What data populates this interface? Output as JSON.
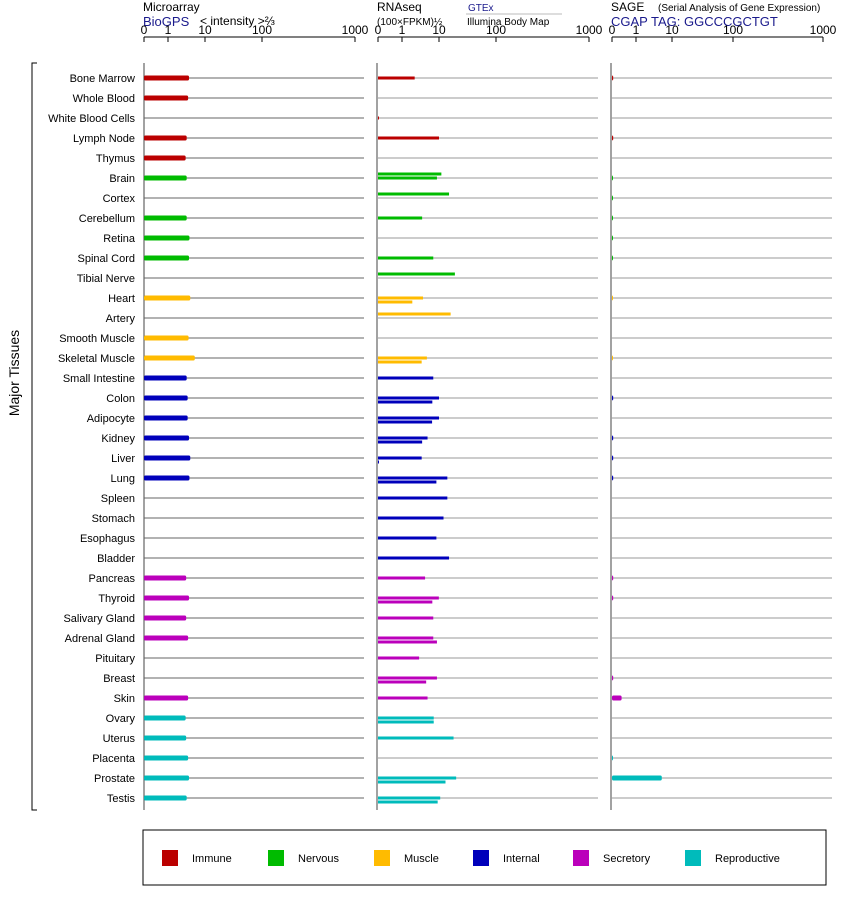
{
  "headers": {
    "microarray_title": "Microarray",
    "microarray_source": "BioGPS",
    "microarray_scale_label": "< intensity >⅔",
    "rnaseq_title": "RNAseq",
    "rnaseq_scale_label": "(100×FPKM)½",
    "rnaseq_source_1": "GTEx",
    "rnaseq_source_2": "Illumina Body Map",
    "sage_title": "SAGE",
    "sage_subtitle": "(Serial Analysis of Gene Expression)",
    "sage_source": "CGAP TAG: GGCCCGCTGT"
  },
  "y_group_label": "Major Tissues",
  "chart_data": {
    "type": "bar",
    "orientation": "horizontal",
    "x_scale": "nonlinear",
    "x_ticks": [
      "0",
      "1",
      "10",
      "100",
      "1000"
    ],
    "categories": [
      "Bone Marrow",
      "Whole Blood",
      "White Blood Cells",
      "Lymph Node",
      "Thymus",
      "Brain",
      "Cortex",
      "Cerebellum",
      "Retina",
      "Spinal Cord",
      "Tibial Nerve",
      "Heart",
      "Artery",
      "Smooth Muscle",
      "Skeletal Muscle",
      "Small Intestine",
      "Colon",
      "Adipocyte",
      "Kidney",
      "Liver",
      "Lung",
      "Spleen",
      "Stomach",
      "Esophagus",
      "Bladder",
      "Pancreas",
      "Thyroid",
      "Salivary Gland",
      "Adrenal Gland",
      "Pituitary",
      "Breast",
      "Skin",
      "Ovary",
      "Uterus",
      "Placenta",
      "Prostate",
      "Testis"
    ],
    "groups": [
      "Immune",
      "Immune",
      "Immune",
      "Immune",
      "Immune",
      "Nervous",
      "Nervous",
      "Nervous",
      "Nervous",
      "Nervous",
      "Nervous",
      "Muscle",
      "Muscle",
      "Muscle",
      "Muscle",
      "Internal",
      "Internal",
      "Internal",
      "Internal",
      "Internal",
      "Internal",
      "Internal",
      "Internal",
      "Internal",
      "Internal",
      "Secretory",
      "Secretory",
      "Secretory",
      "Secretory",
      "Secretory",
      "Secretory",
      "Secretory",
      "Reproductive",
      "Reproductive",
      "Reproductive",
      "Reproductive",
      "Reproductive"
    ],
    "legend": [
      {
        "name": "Immune",
        "color": "#bb0000"
      },
      {
        "name": "Nervous",
        "color": "#00bb00"
      },
      {
        "name": "Muscle",
        "color": "#ffbb00"
      },
      {
        "name": "Internal",
        "color": "#0000bb"
      },
      {
        "name": "Secretory",
        "color": "#bb00bb"
      },
      {
        "name": "Reproductive",
        "color": "#00bbbb"
      }
    ],
    "panels": [
      {
        "name": "Microarray",
        "series": [
          {
            "values": [
              3.7,
              3.5,
              null,
              3.2,
              3.0,
              3.2,
              null,
              3.2,
              3.8,
              3.7,
              null,
              4.0,
              null,
              3.6,
              5.3,
              3.2,
              3.4,
              3.4,
              3.7,
              4.0,
              3.8,
              null,
              null,
              null,
              null,
              3.1,
              3.7,
              3.1,
              3.5,
              null,
              null,
              3.5,
              3.0,
              3.1,
              3.5,
              3.7,
              3.2
            ]
          }
        ]
      },
      {
        "name": "RNAseq",
        "series": [
          {
            "name": "GTEx",
            "values": [
              null,
              null,
              null,
              null,
              null,
              11,
              15,
              null,
              null,
              null,
              19,
              null,
              16,
              null,
              null,
              null,
              null,
              null,
              null,
              null,
              null,
              null,
              null,
              null,
              null,
              null,
              null,
              null,
              null,
              null,
              null,
              null,
              null,
              null,
              null,
              null,
              null
            ]
          },
          {
            "name": "Illumina Body Map",
            "values": [
              2.2,
              null,
              0.02,
              10,
              null,
              8.8,
              null,
              3.5,
              null,
              7,
              null,
              3.7,
              null,
              null,
              4.7,
              7,
              10,
              10,
              4.9,
              3.4,
              14,
              14,
              12,
              8.5,
              15,
              4.2,
              9.9,
              7,
              7,
              2.9,
              8.8,
              4.9,
              7.2,
              18,
              null,
              20,
              10.5
            ]
          },
          {
            "name": "",
            "values": [
              null,
              null,
              null,
              null,
              null,
              null,
              null,
              null,
              null,
              null,
              null,
              1.9,
              null,
              null,
              3.4,
              null,
              6.6,
              6.5,
              3.5,
              0.02,
              8.5,
              null,
              null,
              null,
              null,
              null,
              6.6,
              null,
              8.8,
              null,
              4.5,
              null,
              7.2,
              null,
              null,
              13,
              9.2
            ]
          }
        ]
      },
      {
        "name": "SAGE",
        "series": [
          {
            "values": [
              0.05,
              null,
              null,
              0.05,
              null,
              0.03,
              0.03,
              0.03,
              0.03,
              0.03,
              null,
              0.02,
              null,
              null,
              0.02,
              null,
              0.05,
              null,
              0.05,
              0.05,
              0.05,
              null,
              null,
              null,
              null,
              0.05,
              0.05,
              null,
              null,
              null,
              0.05,
              0.4,
              null,
              null,
              0.03,
              5.2,
              null
            ]
          }
        ]
      }
    ]
  }
}
